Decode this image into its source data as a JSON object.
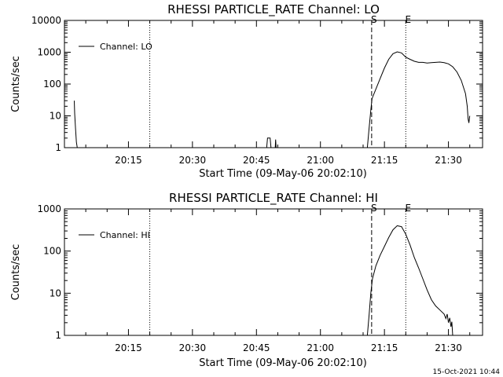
{
  "timestamp": "15-Oct-2021 10:44",
  "chart_data": [
    {
      "type": "line",
      "title": "RHESSI PARTICLE_RATE Channel: LO",
      "xlabel": "Start Time (09-May-06 20:02:10)",
      "ylabel": "Counts/sec",
      "y_scale": "log",
      "ylim": [
        1,
        10000
      ],
      "yticks": [
        1,
        10,
        100,
        1000,
        10000
      ],
      "ytick_labels": [
        "1",
        "10",
        "100",
        "1000",
        "10000"
      ],
      "xlim_minutes": [
        20.0,
        21.6333
      ],
      "xticks": [
        "20:15",
        "20:30",
        "20:45",
        "21:00",
        "21:15",
        "21:30"
      ],
      "legend": "Channel: LO",
      "legend_position": "top-left",
      "markers": [
        {
          "label": "",
          "time": "20:20",
          "style": "dotted"
        },
        {
          "label": "S",
          "time": "21:12",
          "style": "dashed"
        },
        {
          "label": "E",
          "time": "21:20",
          "style": "dotted"
        },
        {
          "label": "",
          "time": "21:38",
          "style": "dash-dot"
        }
      ],
      "series": [
        {
          "name": "Channel: LO",
          "points": [
            [
              20.0383,
              30
            ],
            [
              20.04,
              12
            ],
            [
              20.0433,
              4
            ],
            [
              20.0467,
              1.5
            ],
            [
              20.05,
              1
            ]
          ]
        },
        {
          "name": "Channel: LO",
          "points": [
            [
              20.79,
              1
            ],
            [
              20.7933,
              2
            ],
            [
              20.8033,
              2
            ],
            [
              20.8067,
              1
            ]
          ]
        },
        {
          "name": "Channel: LO",
          "points": [
            [
              20.8233,
              1
            ],
            [
              20.825,
              1.8
            ],
            [
              20.8267,
              1
            ]
          ]
        },
        {
          "name": "Channel: LO",
          "points": [
            [
              21.1833,
              1
            ],
            [
              21.19,
              4
            ],
            [
              21.1967,
              15
            ],
            [
              21.2017,
              35
            ],
            [
              21.2167,
              70
            ],
            [
              21.2333,
              150
            ],
            [
              21.25,
              320
            ],
            [
              21.2667,
              600
            ],
            [
              21.2833,
              900
            ],
            [
              21.3,
              1030
            ],
            [
              21.3167,
              950
            ],
            [
              21.3333,
              700
            ],
            [
              21.35,
              600
            ],
            [
              21.3667,
              520
            ],
            [
              21.3833,
              480
            ],
            [
              21.4,
              480
            ],
            [
              21.4167,
              460
            ],
            [
              21.4333,
              470
            ],
            [
              21.45,
              480
            ],
            [
              21.4667,
              490
            ],
            [
              21.4833,
              470
            ],
            [
              21.5,
              430
            ],
            [
              21.5167,
              350
            ],
            [
              21.5333,
              240
            ],
            [
              21.55,
              130
            ],
            [
              21.5667,
              50
            ],
            [
              21.5733,
              20
            ],
            [
              21.5767,
              8
            ],
            [
              21.58,
              6
            ],
            [
              21.5833,
              10
            ]
          ]
        }
      ]
    },
    {
      "type": "line",
      "title": "RHESSI PARTICLE_RATE Channel: HI",
      "xlabel": "Start Time (09-May-06 20:02:10)",
      "ylabel": "Counts/sec",
      "y_scale": "log",
      "ylim": [
        1,
        1000
      ],
      "yticks": [
        1,
        10,
        100,
        1000
      ],
      "ytick_labels": [
        "1",
        "10",
        "100",
        "1000"
      ],
      "xlim_minutes": [
        20.0,
        21.6333
      ],
      "xticks": [
        "20:15",
        "20:30",
        "20:45",
        "21:00",
        "21:15",
        "21:30"
      ],
      "legend": "Channel: HI",
      "legend_position": "top-left",
      "markers": [
        {
          "label": "",
          "time": "20:20",
          "style": "dotted"
        },
        {
          "label": "S",
          "time": "21:12",
          "style": "dashed"
        },
        {
          "label": "E",
          "time": "21:20",
          "style": "dotted"
        },
        {
          "label": "",
          "time": "21:38",
          "style": "dash-dot"
        }
      ],
      "series": [
        {
          "name": "Channel: HI",
          "points": [
            [
              21.1833,
              1
            ],
            [
              21.19,
              3
            ],
            [
              21.1967,
              10
            ],
            [
              21.2033,
              22
            ],
            [
              21.2167,
              45
            ],
            [
              21.2333,
              80
            ],
            [
              21.25,
              130
            ],
            [
              21.2667,
              210
            ],
            [
              21.2833,
              320
            ],
            [
              21.3,
              400
            ],
            [
              21.3167,
              380
            ],
            [
              21.3333,
              250
            ],
            [
              21.35,
              140
            ],
            [
              21.3667,
              70
            ],
            [
              21.3833,
              40
            ],
            [
              21.4,
              22
            ],
            [
              21.4167,
              12
            ],
            [
              21.4333,
              7
            ],
            [
              21.45,
              5
            ],
            [
              21.4667,
              4
            ],
            [
              21.4833,
              3.2
            ],
            [
              21.49,
              2.5
            ],
            [
              21.495,
              3.2
            ],
            [
              21.5,
              2
            ],
            [
              21.505,
              2.6
            ],
            [
              21.51,
              1.6
            ],
            [
              21.5133,
              2.1
            ],
            [
              21.5167,
              1
            ]
          ]
        }
      ]
    }
  ]
}
